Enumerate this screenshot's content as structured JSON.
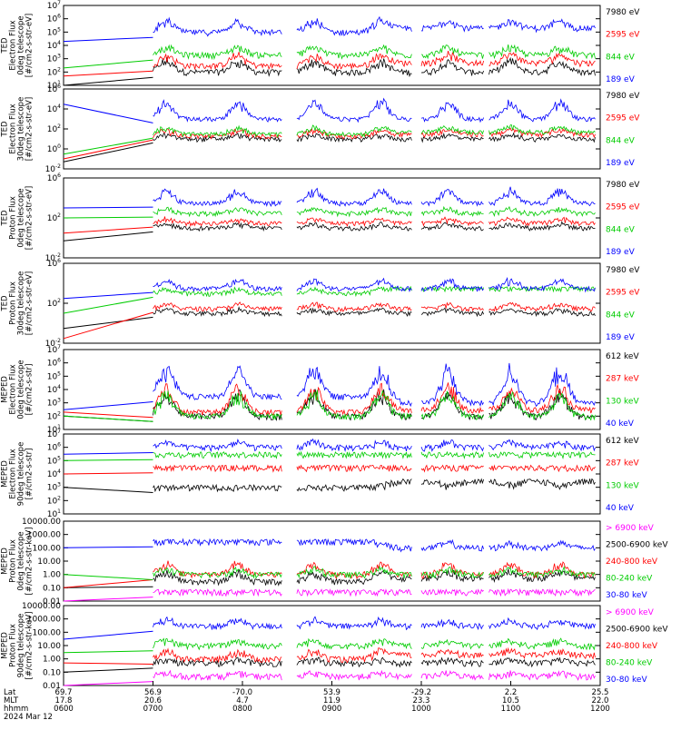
{
  "chart_data": [
    {
      "type": "line",
      "ylabel_lines": [
        "TED",
        "Electron Flux",
        "0deg telescope",
        "[#/cm2-s-str-eV]"
      ],
      "yscale": "log",
      "ytick_exponents": [
        1,
        2,
        3,
        4,
        5,
        6,
        7
      ],
      "ylim": [
        10,
        10000000
      ],
      "series": [
        {
          "name": "7980 eV",
          "color": "#000000",
          "values": [
            10,
            100,
            100,
            1000,
            30
          ]
        },
        {
          "name": "2595 eV",
          "color": "#ff0000",
          "values": [
            50,
            300,
            500,
            3000,
            100
          ]
        },
        {
          "name": "844 eV",
          "color": "#00cc00",
          "values": [
            200,
            2000,
            2000,
            10000,
            500
          ]
        },
        {
          "name": "189 eV",
          "color": "#0000ff",
          "values": [
            20000,
            100000,
            200000,
            1000000,
            30000
          ]
        }
      ]
    },
    {
      "type": "line",
      "ylabel_lines": [
        "TED",
        "Electron Flux",
        "30deg telescope",
        "[#/cm2-s-str-eV]"
      ],
      "yscale": "log",
      "ytick_exponents": [
        -2,
        0,
        2,
        4,
        6
      ],
      "ylim": [
        0.01,
        1000000
      ],
      "series": [
        {
          "name": "7980 eV",
          "color": "#000000",
          "values": [
            0.05,
            10,
            10,
            30,
            1
          ]
        },
        {
          "name": "2595 eV",
          "color": "#ff0000",
          "values": [
            0.1,
            20,
            30,
            100,
            3
          ]
        },
        {
          "name": "844 eV",
          "color": "#00cc00",
          "values": [
            0.3,
            30,
            50,
            200,
            10
          ]
        },
        {
          "name": "189 eV",
          "color": "#0000ff",
          "values": [
            30000,
            1000,
            1000,
            100000,
            300
          ]
        }
      ]
    },
    {
      "type": "line",
      "ylabel_lines": [
        "TED",
        "Proton Flux",
        "0deg telescope",
        "[#/cm2-s-str-eV]"
      ],
      "yscale": "log",
      "ytick_exponents": [
        -2,
        2,
        6
      ],
      "ylim": [
        0.01,
        1000000
      ],
      "series": [
        {
          "name": "7980 eV",
          "color": "#000000",
          "values": [
            0.5,
            10,
            10,
            30,
            10
          ]
        },
        {
          "name": "2595 eV",
          "color": "#ff0000",
          "values": [
            3,
            30,
            30,
            100,
            30
          ]
        },
        {
          "name": "844 eV",
          "color": "#00cc00",
          "values": [
            100,
            300,
            300,
            1000,
            100
          ]
        },
        {
          "name": "189 eV",
          "color": "#0000ff",
          "values": [
            1000,
            3000,
            3000,
            100000,
            1000
          ]
        }
      ]
    },
    {
      "type": "line",
      "ylabel_lines": [
        "TED",
        "Proton Flux",
        "30deg telescope",
        "[#/cm2-s-str-eV]"
      ],
      "yscale": "log",
      "ytick_exponents": [
        -2,
        2,
        6
      ],
      "ylim": [
        0.01,
        1000000
      ],
      "series": [
        {
          "name": "7980 eV",
          "color": "#000000",
          "values": [
            0.3,
            10,
            10,
            30,
            10
          ]
        },
        {
          "name": "2595 eV",
          "color": "#ff0000",
          "values": [
            0.03,
            30,
            30,
            100,
            30
          ]
        },
        {
          "name": "844 eV",
          "color": "#00cc00",
          "values": [
            10,
            1000,
            3000,
            3000,
            1000
          ]
        },
        {
          "name": "189 eV",
          "color": "#0000ff",
          "values": [
            300,
            3000,
            3000,
            30000,
            1000
          ]
        }
      ]
    },
    {
      "type": "line",
      "ylabel_lines": [
        "MEPED",
        "Electron Flux",
        "0deg telescope",
        "[#/cm2-s-str]"
      ],
      "yscale": "log",
      "ytick_exponents": [
        1,
        2,
        3,
        4,
        5,
        6,
        7
      ],
      "ylim": [
        10,
        10000000
      ],
      "series": [
        {
          "name": "612 keV",
          "color": "#000000",
          "values": [
            100,
            100,
            100,
            10000,
            100
          ]
        },
        {
          "name": "287 keV",
          "color": "#ff0000",
          "values": [
            200,
            200,
            300,
            30000,
            200
          ]
        },
        {
          "name": "130 keV",
          "color": "#00cc00",
          "values": [
            100,
            100,
            100,
            10000,
            100
          ]
        },
        {
          "name": "40 keV",
          "color": "#0000ff",
          "values": [
            300,
            3000,
            1000,
            1000000,
            300
          ]
        }
      ]
    },
    {
      "type": "line",
      "ylabel_lines": [
        "MEPED",
        "Electron Flux",
        "90deg telescope",
        "[#/cm2-s-str]"
      ],
      "yscale": "log",
      "ytick_exponents": [
        1,
        2,
        3,
        4,
        5,
        6,
        7
      ],
      "ylim": [
        10,
        10000000
      ],
      "series": [
        {
          "name": "612 keV",
          "color": "#000000",
          "values": [
            1000,
            1000,
            3000,
            1000,
            300
          ]
        },
        {
          "name": "287 keV",
          "color": "#ff0000",
          "values": [
            10000,
            30000,
            30000,
            30000,
            1000
          ]
        },
        {
          "name": "130 keV",
          "color": "#00cc00",
          "values": [
            100000,
            300000,
            300000,
            300000,
            3000
          ]
        },
        {
          "name": "40 keV",
          "color": "#0000ff",
          "values": [
            300000,
            1000000,
            1000000,
            3000000,
            10000
          ]
        }
      ]
    },
    {
      "type": "line",
      "ylabel_lines": [
        "MEPED",
        "Proton Flux",
        "0deg telescope",
        "[#/cm2-s-str-keV]"
      ],
      "yscale": "log",
      "ytick_labels": [
        "10000.00",
        "1000.00",
        "100.00",
        "10.00",
        "1.00",
        "0.10",
        "0.01"
      ],
      "ylim": [
        0.01,
        10000
      ],
      "series": [
        {
          "name": "> 6900 keV",
          "color": "#ff00ff",
          "values": [
            0.01,
            0.05,
            0.05,
            0.05,
            0.01
          ]
        },
        {
          "name": "2500-6900 keV",
          "color": "#000000",
          "values": [
            0.1,
            0.3,
            0.5,
            2,
            0.1
          ]
        },
        {
          "name": "240-800 keV",
          "color": "#ff0000",
          "values": [
            0.1,
            1,
            1,
            10,
            0.1
          ]
        },
        {
          "name": "80-240 keV",
          "color": "#00cc00",
          "values": [
            1,
            1,
            1,
            3,
            1
          ]
        },
        {
          "name": "30-80 keV",
          "color": "#0000ff",
          "values": [
            100,
            300,
            100,
            300,
            10
          ]
        }
      ]
    },
    {
      "type": "line",
      "ylabel_lines": [
        "MEPED",
        "Proton Flux",
        "90deg telescope",
        "[#/cm2-s-str-keV]"
      ],
      "yscale": "log",
      "ytick_labels": [
        "10000.00",
        "1000.00",
        "100.00",
        "10.00",
        "1.00",
        "0.10",
        "0.01"
      ],
      "ylim": [
        0.01,
        10000
      ],
      "series": [
        {
          "name": "> 6900 keV",
          "color": "#ff00ff",
          "values": [
            0.01,
            0.05,
            0.05,
            0.1,
            0.01
          ]
        },
        {
          "name": "2500-6900 keV",
          "color": "#000000",
          "values": [
            0.1,
            0.5,
            0.5,
            1,
            0.1
          ]
        },
        {
          "name": "240-800 keV",
          "color": "#ff0000",
          "values": [
            0.5,
            1,
            2,
            5,
            0.3
          ]
        },
        {
          "name": "80-240 keV",
          "color": "#00cc00",
          "values": [
            3,
            10,
            10,
            30,
            3
          ]
        },
        {
          "name": "30-80 keV",
          "color": "#0000ff",
          "values": [
            30,
            300,
            300,
            1000,
            30
          ]
        }
      ]
    }
  ],
  "x_axis": {
    "row_labels": [
      "Lat",
      "MLT",
      "hhmm"
    ],
    "ticks": [
      {
        "lat": "69.7",
        "mlt": "17.8",
        "hhmm": "0600"
      },
      {
        "lat": "56.9",
        "mlt": "20.6",
        "hhmm": "0700"
      },
      {
        "lat": "-70.0",
        "mlt": "4.7",
        "hhmm": "0800"
      },
      {
        "lat": "53.9",
        "mlt": "11.9",
        "hhmm": "0900"
      },
      {
        "lat": "-29.2",
        "mlt": "23.3",
        "hhmm": "1000"
      },
      {
        "lat": "2.2",
        "mlt": "10.5",
        "hhmm": "1100"
      },
      {
        "lat": "25.5",
        "mlt": "22.0",
        "hhmm": "1200"
      }
    ],
    "date": "2024 Mar 12"
  }
}
